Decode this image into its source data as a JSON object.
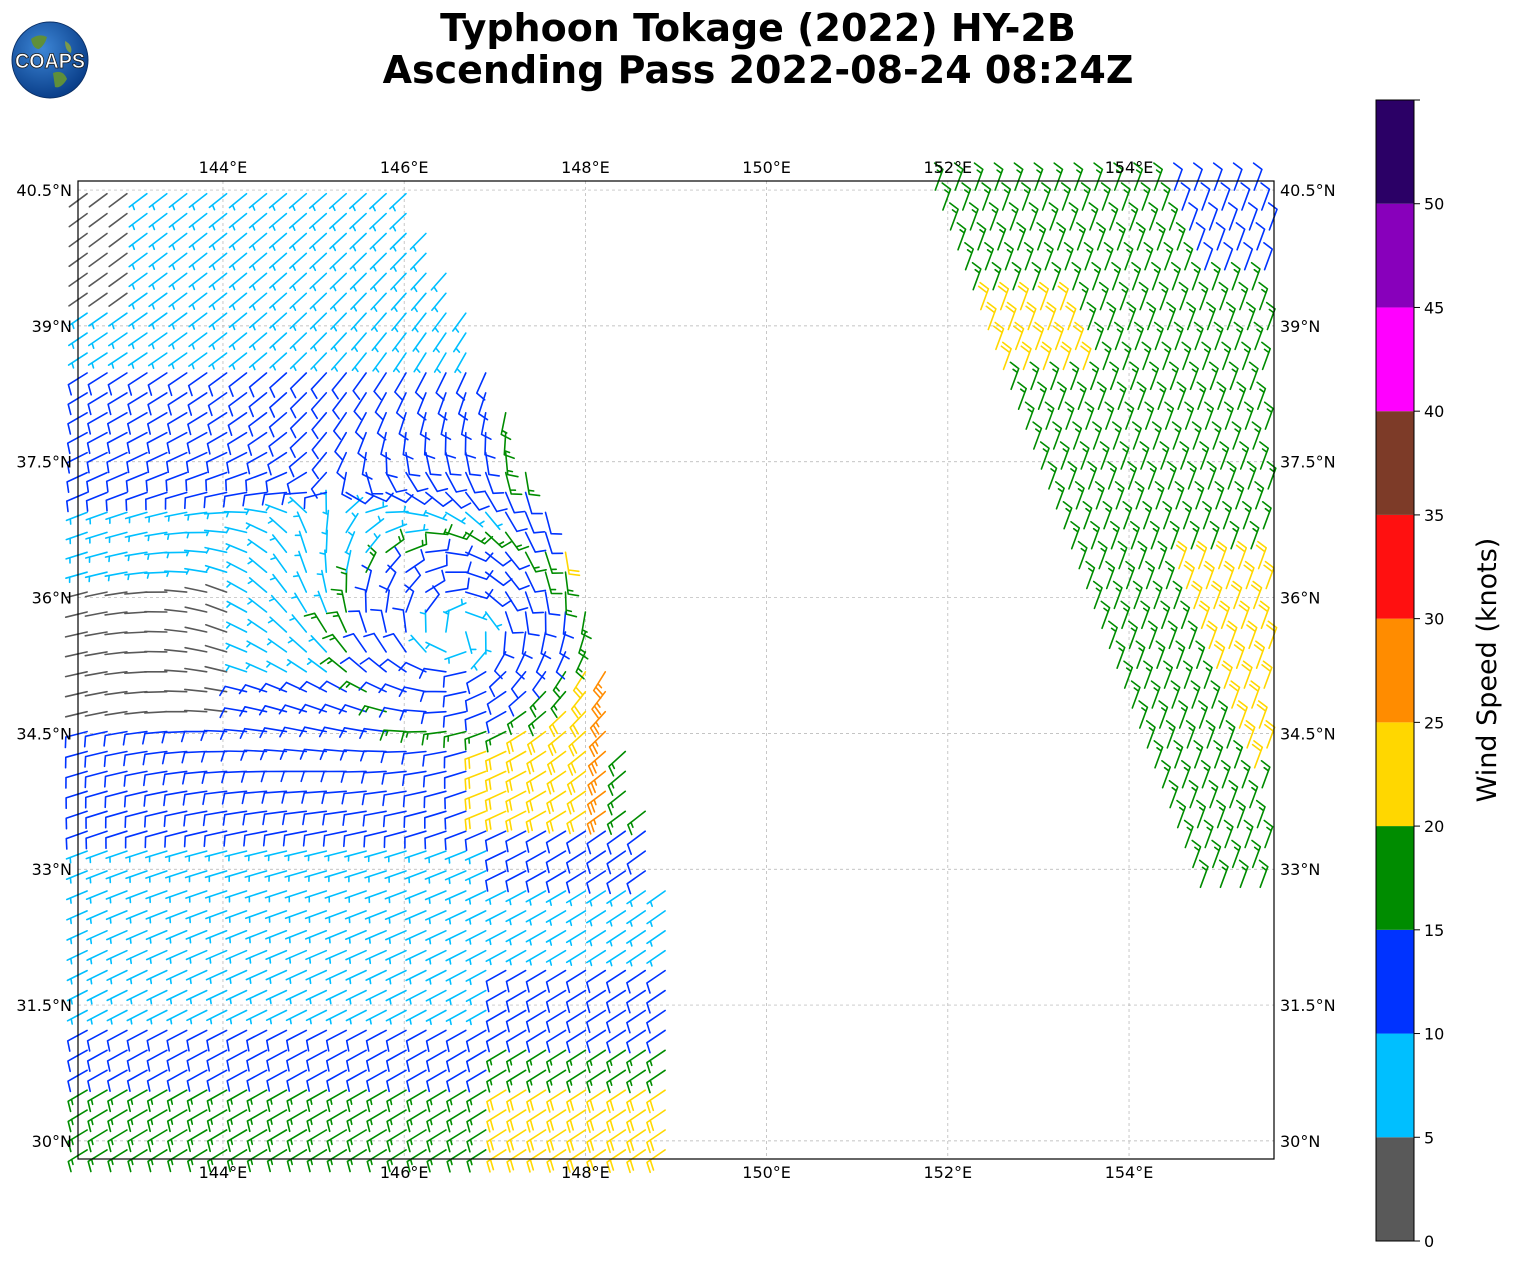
{
  "title": {
    "line1": "Typhoon Tokage (2022) HY-2B",
    "line2": "Ascending Pass 2022-08-24 08:24Z"
  },
  "logo": {
    "text": "COAPS",
    "icon": "globe-icon"
  },
  "map": {
    "lon_range": [
      142.4,
      155.6
    ],
    "lat_range": [
      29.8,
      40.6
    ],
    "lon_ticks": [
      144,
      146,
      148,
      150,
      152,
      154
    ],
    "lon_tick_labels": [
      "144°E",
      "146°E",
      "148°E",
      "150°E",
      "152°E",
      "154°E"
    ],
    "lat_ticks": [
      30,
      31.5,
      33,
      34.5,
      36,
      37.5,
      39,
      40.5
    ],
    "lat_tick_labels": [
      "30°N",
      "31.5°N",
      "33°N",
      "34.5°N",
      "36°N",
      "37.5°N",
      "39°N",
      "40.5°N"
    ],
    "grid": true,
    "grid_color": "#b0b0b0"
  },
  "colorbar": {
    "label": "Wind Speed (knots)",
    "tick_values": [
      0,
      5,
      10,
      15,
      20,
      25,
      30,
      35,
      40,
      45,
      50
    ],
    "tick_labels": [
      "0",
      "5",
      "10",
      "15",
      "20",
      "25",
      "30",
      "35",
      "40",
      "45",
      "50"
    ],
    "max": 55,
    "colors": [
      "#595959",
      "#00bfff",
      "#0033ff",
      "#008c00",
      "#ffd700",
      "#ff8c00",
      "#ff1010",
      "#7d3b28",
      "#ff00ff",
      "#8800bb",
      "#2b0066"
    ]
  },
  "chart_data": {
    "type": "wind-barbs",
    "units": "knots",
    "swaths": [
      {
        "lon_range": [
          142.4,
          149.0
        ],
        "lat_range": [
          29.8,
          40.6
        ],
        "note": "western swath"
      },
      {
        "lon_range": [
          151.8,
          155.6
        ],
        "lat_range": [
          32.7,
          40.6
        ],
        "note": "eastern swath"
      }
    ],
    "circulation_center": {
      "lon": 146.6,
      "lat": 35.6
    }
  }
}
